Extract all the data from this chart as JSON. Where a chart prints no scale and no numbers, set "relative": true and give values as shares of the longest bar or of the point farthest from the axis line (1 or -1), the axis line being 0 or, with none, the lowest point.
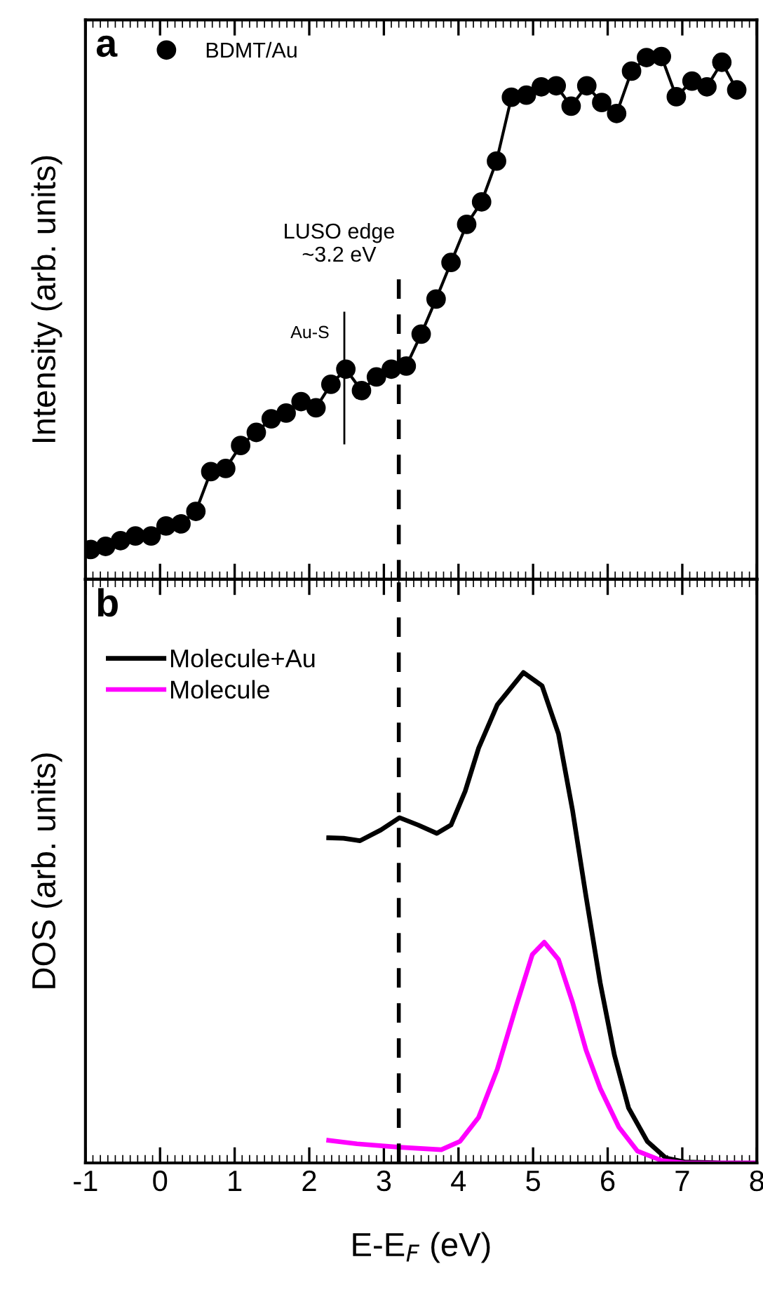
{
  "chart_data": [
    {
      "type": "line",
      "ylabel": "Intensity (arb. units)",
      "relative": true,
      "xlim": [
        -1,
        8
      ],
      "tick_labels": false,
      "marker": "circle",
      "line_style": "solid",
      "legend": "top left",
      "grid": false,
      "annotations": [
        "a",
        {
          "text": "Au-S",
          "x": 2.47,
          "y": 0.4
        }
      ],
      "ref_lines": [
        {
          "axis": "x",
          "value": 3.2,
          "label": "LUSO edge\n~3.2 eV",
          "line_style": "dashed",
          "color": "#000000"
        }
      ],
      "series": [
        {
          "name": "BDMT/Au",
          "color": "#000000",
          "x": [
            -0.93,
            -0.73,
            -0.53,
            -0.33,
            -0.12,
            0.08,
            0.28,
            0.48,
            0.68,
            0.88,
            1.08,
            1.29,
            1.49,
            1.69,
            1.89,
            2.09,
            2.29,
            2.49,
            2.7,
            2.9,
            3.1,
            3.3,
            3.5,
            3.7,
            3.9,
            4.11,
            4.31,
            4.51,
            4.71,
            4.91,
            5.11,
            5.31,
            5.51,
            5.72,
            5.92,
            6.12,
            6.32,
            6.52,
            6.72,
            6.92,
            7.13,
            7.33,
            7.53,
            7.73
          ],
          "values": [
            0.057,
            0.063,
            0.074,
            0.083,
            0.083,
            0.102,
            0.106,
            0.13,
            0.206,
            0.212,
            0.256,
            0.281,
            0.307,
            0.318,
            0.34,
            0.328,
            0.373,
            0.402,
            0.361,
            0.387,
            0.402,
            0.408,
            0.469,
            0.536,
            0.606,
            0.679,
            0.722,
            0.8,
            0.922,
            0.926,
            0.942,
            0.944,
            0.905,
            0.944,
            0.912,
            0.891,
            0.972,
            0.998,
            1.0,
            0.923,
            0.953,
            0.942,
            0.989,
            0.936
          ]
        }
      ]
    },
    {
      "type": "line",
      "ylabel": "DOS (arb. units)",
      "xlabel": "E-E$_{F}$ (eV)",
      "relative": true,
      "xlim": [
        -1,
        8
      ],
      "xticks": [
        -1,
        0,
        1,
        2,
        3,
        4,
        5,
        6,
        7,
        8
      ],
      "tick_labels": "x",
      "marker": "none",
      "line_style": "solid",
      "legend": "top left",
      "grid": false,
      "annotations": [
        "b"
      ],
      "ref_lines": [
        {
          "axis": "x",
          "value": 3.2,
          "line_style": "dashed",
          "color": "#000000"
        }
      ],
      "series": [
        {
          "name": "Molecule+Au",
          "color": "#000000",
          "x": [
            2.26,
            2.46,
            2.68,
            2.96,
            3.21,
            3.46,
            3.71,
            3.9,
            4.09,
            4.27,
            4.52,
            4.87,
            5.12,
            5.34,
            5.53,
            5.71,
            5.9,
            6.09,
            6.28,
            6.53,
            6.78,
            7.03,
            7.53,
            8.0
          ],
          "values": [
            0.663,
            0.662,
            0.657,
            0.679,
            0.704,
            0.689,
            0.672,
            0.689,
            0.758,
            0.846,
            0.934,
            1.0,
            0.973,
            0.875,
            0.718,
            0.543,
            0.367,
            0.22,
            0.112,
            0.044,
            0.01,
            0.002,
            0,
            0
          ]
        },
        {
          "name": "Molecule",
          "color": "#ff00ff",
          "x": [
            2.26,
            2.64,
            3.21,
            3.77,
            4.02,
            4.27,
            4.52,
            4.77,
            4.99,
            5.15,
            5.34,
            5.53,
            5.71,
            5.9,
            6.15,
            6.4,
            6.72,
            7.03,
            8.0
          ],
          "values": [
            0.046,
            0.039,
            0.032,
            0.027,
            0.044,
            0.093,
            0.191,
            0.318,
            0.425,
            0.45,
            0.415,
            0.327,
            0.23,
            0.152,
            0.073,
            0.024,
            0.005,
            0,
            0
          ]
        }
      ]
    }
  ]
}
